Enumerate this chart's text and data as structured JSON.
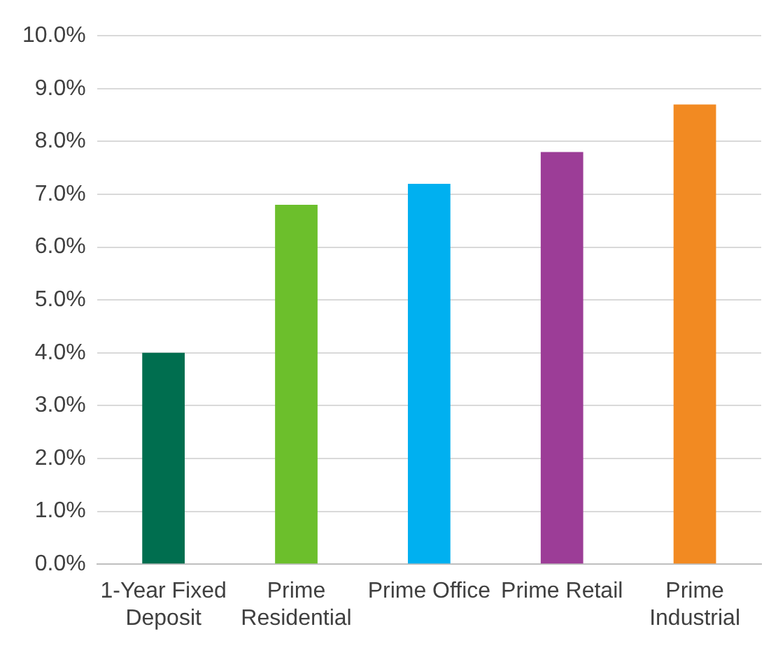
{
  "chart_data": {
    "type": "bar",
    "categories": [
      "1-Year Fixed\nDeposit",
      "Prime\nResidential",
      "Prime Office",
      "Prime Retail",
      "Prime\nIndustrial"
    ],
    "values": [
      4.0,
      6.8,
      7.2,
      7.8,
      8.7
    ],
    "colors": [
      "#006e4f",
      "#6cbf2c",
      "#00b0f0",
      "#9c3d97",
      "#f28a22"
    ],
    "ylim": [
      0,
      10
    ],
    "yticks": [
      {
        "value": 0,
        "label": "0.0%"
      },
      {
        "value": 1,
        "label": "1.0%"
      },
      {
        "value": 2,
        "label": "2.0%"
      },
      {
        "value": 3,
        "label": "3.0%"
      },
      {
        "value": 4,
        "label": "4.0%"
      },
      {
        "value": 5,
        "label": "5.0%"
      },
      {
        "value": 6,
        "label": "6.0%"
      },
      {
        "value": 7,
        "label": "7.0%"
      },
      {
        "value": 8,
        "label": "8.0%"
      },
      {
        "value": 9,
        "label": "9.0%"
      },
      {
        "value": 10,
        "label": "10.0%"
      }
    ],
    "grid": "y"
  }
}
